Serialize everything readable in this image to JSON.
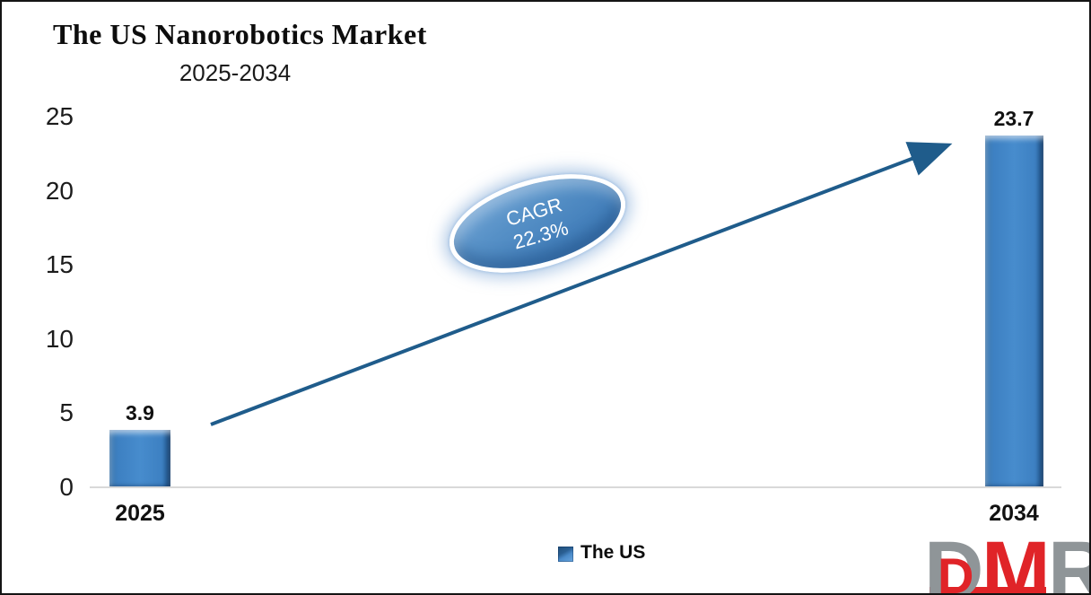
{
  "header": {
    "title": "The US Nanorobotics Market",
    "subtitle": "2025-2034"
  },
  "chart_data": {
    "type": "bar",
    "title": "The US Nanorobotics Market",
    "subtitle": "2025-2034",
    "categories": [
      "2025",
      "2034"
    ],
    "series": [
      {
        "name": "The US",
        "values": [
          3.9,
          23.7
        ]
      }
    ],
    "value_labels": [
      "3.9",
      "23.7"
    ],
    "y_ticks": [
      25,
      20,
      15,
      10,
      5,
      0
    ],
    "ylim": [
      0,
      25
    ],
    "grid": false,
    "legend_position": "bottom",
    "bar_color": "#3D80C2",
    "axis_line_color": "#D9D9D9",
    "annotation": {
      "line1": "CAGR",
      "line2": "22.3%",
      "ellipse_fill": "#4E8AC8",
      "ellipse_ring": "#FFFFFF",
      "arrow_color": "#1F5C8B"
    }
  },
  "legend": {
    "label": "The US",
    "swatch_color": "#3D80C2"
  },
  "logo": {
    "letters": [
      "D",
      "M",
      "R"
    ],
    "d_color": "#8F9598",
    "m_color": "#E02428",
    "r_color": "#8F9598"
  }
}
